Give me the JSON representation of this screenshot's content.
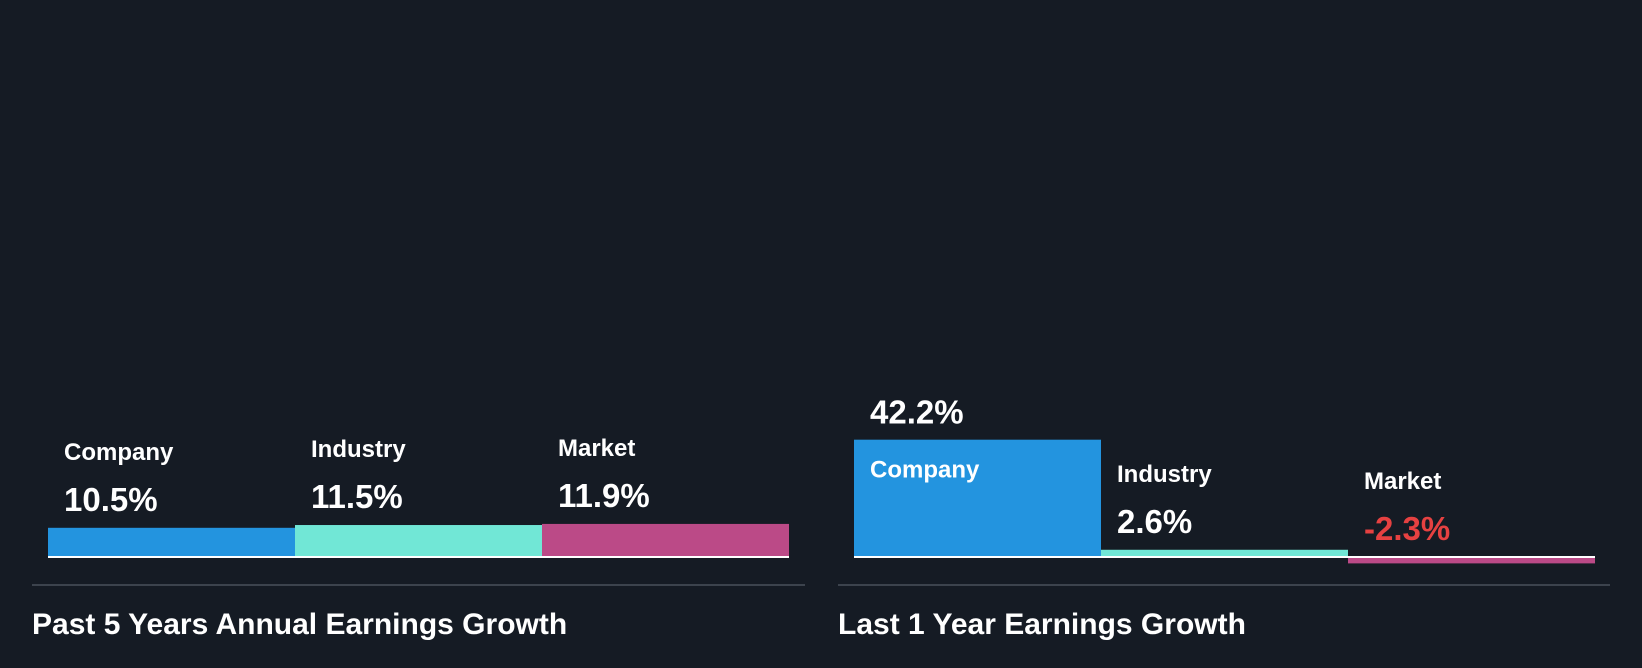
{
  "colors": {
    "background": "#151b24",
    "company": "#2394df",
    "industry": "#71e7d6",
    "market": "#bb4a87",
    "text_light": "#ffffff",
    "text_dark": "#1a2433",
    "negative": "#e64141",
    "axis": "#ffffff",
    "divider": "#3c434d"
  },
  "chart_data": [
    {
      "type": "bar",
      "title": "Past 5 Years Annual Earnings Growth",
      "categories": [
        "Company",
        "Industry",
        "Market"
      ],
      "values": [
        10.5,
        11.5,
        11.9
      ],
      "value_labels": [
        "10.5%",
        "11.5%",
        "11.9%"
      ],
      "unit": "%",
      "ylim": [
        0,
        45
      ]
    },
    {
      "type": "bar",
      "title": "Last 1 Year Earnings Growth",
      "categories": [
        "Company",
        "Industry",
        "Market"
      ],
      "values": [
        42.2,
        2.6,
        -2.3
      ],
      "value_labels": [
        "42.2%",
        "2.6%",
        "-2.3%"
      ],
      "unit": "%",
      "ylim": [
        -2.5,
        45
      ]
    }
  ]
}
